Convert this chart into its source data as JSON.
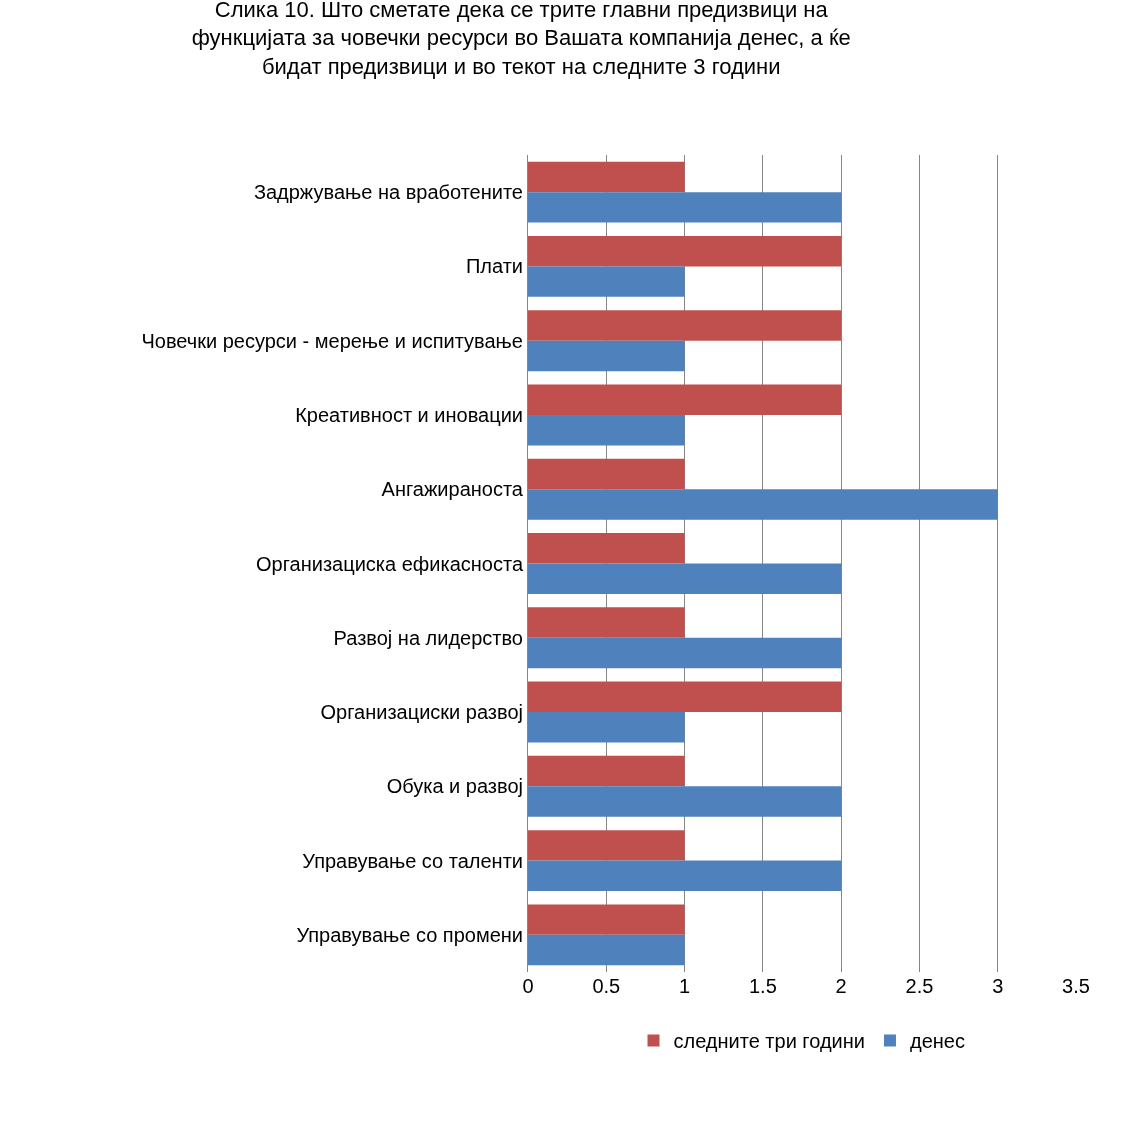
{
  "chart_data": {
    "type": "bar",
    "orientation": "horizontal",
    "title": "Слика 10. Што сметате дека се трите главни предизвици на\nфункцијата за човечки ресурси во Вашата компанија денес, а ќе\nбидат предизвици и во текот на следните 3 години",
    "categories": [
      "Задржување на вработените",
      "Плати",
      "Човечки ресурси - мерење и испитување",
      "Креативност и иновации",
      "Ангажираноста",
      "Организациска ефикасноста",
      "Развој на лидерство",
      "Организациски развој",
      "Обука и развој",
      "Управување со таленти",
      "Управување со промени"
    ],
    "series": [
      {
        "name": "следните три години",
        "color": "#c0504d",
        "values": [
          1,
          2,
          2,
          2,
          1,
          1,
          1,
          2,
          1,
          1,
          1
        ]
      },
      {
        "name": "денес",
        "color": "#4f81bd",
        "values": [
          2,
          1,
          1,
          1,
          3,
          2,
          2,
          1,
          2,
          2,
          1
        ]
      }
    ],
    "xlim": [
      0,
      3.5
    ],
    "xticks": [
      0,
      0.5,
      1,
      1.5,
      2,
      2.5,
      3,
      3.5
    ],
    "grid": "x",
    "legend": "bottom"
  }
}
